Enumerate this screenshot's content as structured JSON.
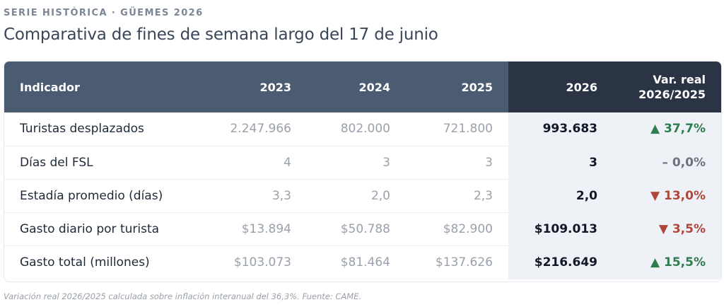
{
  "header": {
    "eyebrow": "SERIE HISTÓRICA · GÜEMES 2026",
    "title": "Comparativa de fines de semana largo del 17 de junio"
  },
  "table": {
    "columns": {
      "indicator": "Indicador",
      "y2023": "2023",
      "y2024": "2024",
      "y2025": "2025",
      "y2026": "2026",
      "var_line1": "Var. real",
      "var_line2": "2026/2025"
    },
    "rows": [
      {
        "label": "Turistas desplazados",
        "y2023": "2.247.966",
        "y2024": "802.000",
        "y2025": "721.800",
        "y2026": "993.683",
        "var": "▲ 37,7%",
        "trend": "up"
      },
      {
        "label": "Días del FSL",
        "y2023": "4",
        "y2024": "3",
        "y2025": "3",
        "y2026": "3",
        "var": "– 0,0%",
        "trend": "flat"
      },
      {
        "label": "Estadía promedio (días)",
        "y2023": "3,3",
        "y2024": "2,0",
        "y2025": "2,3",
        "y2026": "2,0",
        "var": "▼ 13,0%",
        "trend": "down"
      },
      {
        "label": "Gasto diario por turista",
        "y2023": "$13.894",
        "y2024": "$50.788",
        "y2025": "$82.900",
        "y2026": "$109.013",
        "var": "▼ 3,5%",
        "trend": "down"
      },
      {
        "label": "Gasto total (millones)",
        "y2023": "$103.073",
        "y2024": "$81.464",
        "y2025": "$137.626",
        "y2026": "$216.649",
        "var": "▲ 15,5%",
        "trend": "up"
      }
    ],
    "colors": {
      "up": "#2f7d4f",
      "down": "#b0463b",
      "flat": "#6b7380",
      "header": "#4b5b72",
      "header_dark": "#2a3444"
    }
  },
  "footnote": "Variación real 2026/2025 calculada sobre inflación interanual del 36,3%. Fuente: CAME."
}
